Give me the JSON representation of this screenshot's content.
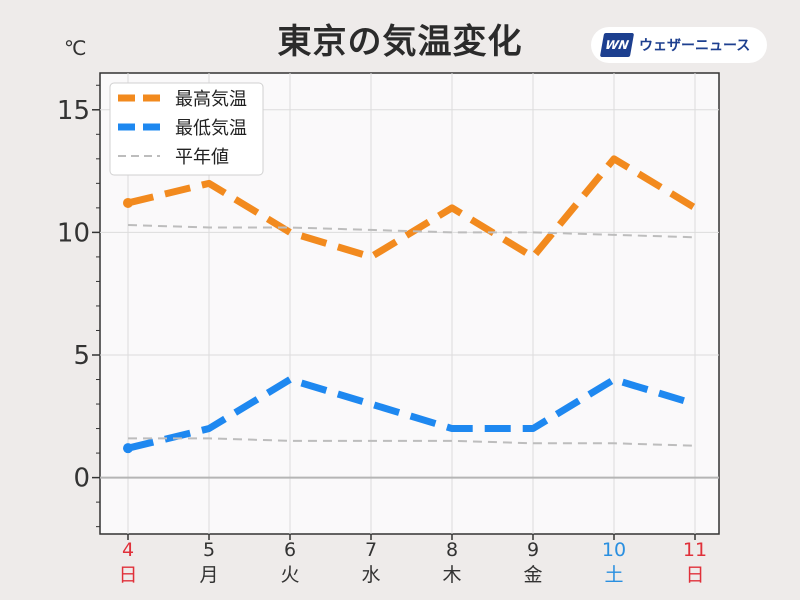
{
  "title": "東京の気温変化",
  "brand": {
    "logo_text": "WN",
    "name": "ウェザーニュース"
  },
  "unit": "℃",
  "colors": {
    "max": "#f28a1e",
    "min": "#1e88f0",
    "normal": "#bdbdbd",
    "sunday": "#e0303a",
    "saturday": "#2a8fe0",
    "weekday": "#333333"
  },
  "chart_data": {
    "type": "line",
    "ylim": [
      -2.3,
      16.5
    ],
    "yticks": [
      0,
      5,
      10,
      15
    ],
    "grid": true,
    "legend": {
      "placement": "top-left"
    },
    "x": [
      {
        "day": "4",
        "weekday": "日",
        "kind": "sunday"
      },
      {
        "day": "5",
        "weekday": "月",
        "kind": "weekday"
      },
      {
        "day": "6",
        "weekday": "火",
        "kind": "weekday"
      },
      {
        "day": "7",
        "weekday": "水",
        "kind": "weekday"
      },
      {
        "day": "8",
        "weekday": "木",
        "kind": "weekday"
      },
      {
        "day": "9",
        "weekday": "金",
        "kind": "weekday"
      },
      {
        "day": "10",
        "weekday": "土",
        "kind": "saturday"
      },
      {
        "day": "11",
        "weekday": "日",
        "kind": "sunday"
      }
    ],
    "series": [
      {
        "name": "最高気温",
        "key": "max",
        "values": [
          11.2,
          12,
          10,
          9,
          11,
          9,
          13,
          11
        ],
        "style": "thick-dashed"
      },
      {
        "name": "最低気温",
        "key": "min",
        "values": [
          1.2,
          2,
          4,
          3,
          2,
          2,
          4,
          3
        ],
        "style": "thick-dashed"
      },
      {
        "name": "平年値",
        "key": "normal",
        "values": [
          10.3,
          10.2,
          10.2,
          10.1,
          10.0,
          10.0,
          9.9,
          9.8
        ],
        "style": "thin-dashed"
      },
      {
        "name": "平年値",
        "key": "normal",
        "values": [
          1.6,
          1.6,
          1.5,
          1.5,
          1.5,
          1.4,
          1.4,
          1.3
        ],
        "style": "thin-dashed"
      }
    ]
  }
}
